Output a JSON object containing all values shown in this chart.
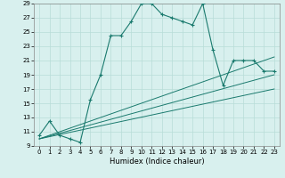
{
  "x": [
    0,
    1,
    2,
    3,
    4,
    5,
    6,
    7,
    8,
    9,
    10,
    11,
    12,
    13,
    14,
    15,
    16,
    17,
    18,
    19,
    20,
    21,
    22,
    23
  ],
  "y_main": [
    10.5,
    12.5,
    10.5,
    10.0,
    9.5,
    15.5,
    19.0,
    24.5,
    24.5,
    26.5,
    29.0,
    29.0,
    27.5,
    27.0,
    26.5,
    26.0,
    29.0,
    22.5,
    17.5,
    21.0,
    21.0,
    21.0,
    19.5,
    19.5
  ],
  "y_line1_start": 10.0,
  "y_line1_end": 21.5,
  "y_line2_start": 10.0,
  "y_line2_end": 19.0,
  "y_line3_start": 10.0,
  "y_line3_end": 17.0,
  "color_main": "#1a7a6e",
  "color_lines": "#1a7a6e",
  "bg_color": "#d8f0ee",
  "grid_color": "#b8ddd8",
  "xlabel": "Humidex (Indice chaleur)",
  "xlim": [
    -0.5,
    23.5
  ],
  "ylim": [
    9,
    29
  ],
  "yticks": [
    9,
    11,
    13,
    15,
    17,
    19,
    21,
    23,
    25,
    27,
    29
  ],
  "xticks": [
    0,
    1,
    2,
    3,
    4,
    5,
    6,
    7,
    8,
    9,
    10,
    11,
    12,
    13,
    14,
    15,
    16,
    17,
    18,
    19,
    20,
    21,
    22,
    23
  ]
}
